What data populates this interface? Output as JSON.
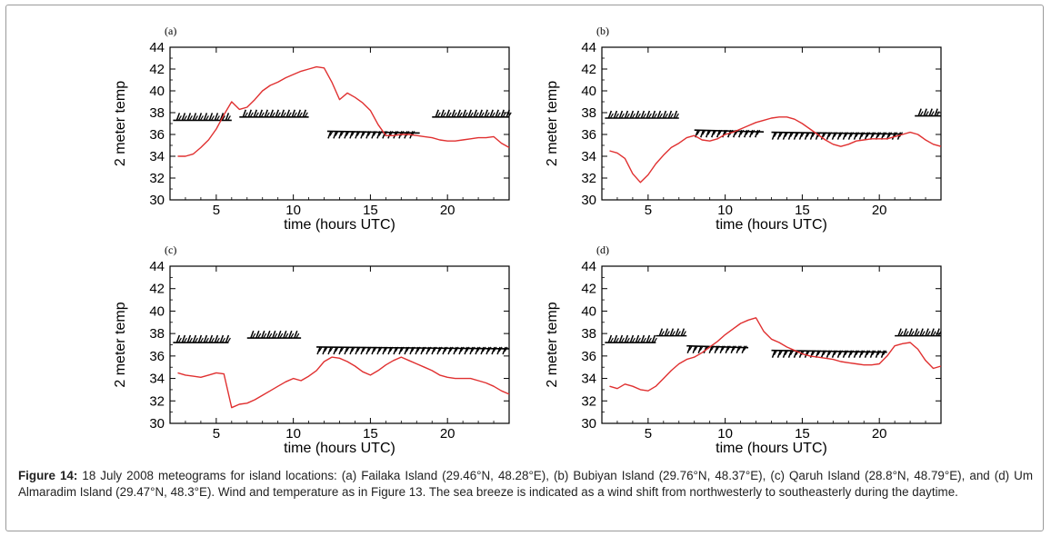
{
  "caption": {
    "label": "Figure 14:",
    "text": " 18 July 2008 meteograms for island locations: (a) Failaka Island (29.46°N, 48.28°E), (b) Bubiyan Island (29.76°N, 48.37°E), (c) Qaruh Island (28.8°N, 48.79°E), and (d) Um Almaradim Island (29.47°N, 48.3°E). Wind and temperature as in Figure 13. The sea breeze is indicated as a wind shift from northwesterly to southeasterly during the daytime."
  },
  "colors": {
    "temperature_line": "#e03030",
    "wind_barbs": "#000000",
    "axis": "#000000"
  },
  "chart_data": [
    {
      "type": "line",
      "panel_label": "(a)",
      "xlabel": "time (hours UTC)",
      "ylabel": "2 meter temp",
      "xlim": [
        2,
        24
      ],
      "ylim": [
        30,
        44
      ],
      "xticks": [
        5,
        10,
        15,
        20
      ],
      "yticks": [
        30,
        32,
        34,
        36,
        38,
        40,
        42,
        44
      ],
      "grid": false,
      "series": [
        {
          "values_x": [
            2.5,
            3,
            3.5,
            4,
            4.5,
            5,
            5.5,
            6,
            6.5,
            7,
            7.5,
            8,
            8.5,
            9,
            9.5,
            10,
            10.5,
            11,
            11.5,
            12,
            12.5,
            13,
            13.5,
            14,
            14.5,
            15,
            15.5,
            16,
            16.5,
            17,
            17.5,
            18,
            18.5,
            19,
            19.5,
            20,
            20.5,
            21,
            21.5,
            22,
            22.5,
            23,
            23.5,
            24
          ],
          "values_y": [
            34.0,
            34.0,
            34.2,
            34.8,
            35.5,
            36.5,
            37.8,
            39.0,
            38.3,
            38.5,
            39.2,
            40.0,
            40.5,
            40.8,
            41.2,
            41.5,
            41.8,
            42.0,
            42.2,
            42.1,
            40.8,
            39.2,
            39.8,
            39.4,
            38.9,
            38.2,
            36.9,
            35.9,
            35.9,
            36.0,
            36.0,
            35.9,
            35.8,
            35.7,
            35.5,
            35.4,
            35.4,
            35.5,
            35.6,
            35.7,
            35.7,
            35.8,
            35.2,
            34.8
          ]
        }
      ],
      "wind": [
        {
          "x_start": 2.2,
          "x_end": 6.0,
          "y": 37.3,
          "direction": "northwesterly"
        },
        {
          "x_start": 6.5,
          "x_end": 11.0,
          "y": 37.6,
          "direction": "northwesterly"
        },
        {
          "x_start": 12.2,
          "x_end": 18.2,
          "y": 36.3,
          "direction": "southeasterly"
        },
        {
          "x_start": 19.0,
          "x_end": 24.0,
          "y": 37.6,
          "direction": "northwesterly"
        }
      ]
    },
    {
      "type": "line",
      "panel_label": "(b)",
      "xlabel": "time (hours UTC)",
      "ylabel": "2 meter temp",
      "xlim": [
        2,
        24
      ],
      "ylim": [
        30,
        44
      ],
      "xticks": [
        5,
        10,
        15,
        20
      ],
      "yticks": [
        30,
        32,
        34,
        36,
        38,
        40,
        42,
        44
      ],
      "grid": false,
      "series": [
        {
          "values_x": [
            2.5,
            3,
            3.5,
            4,
            4.5,
            5,
            5.5,
            6,
            6.5,
            7,
            7.5,
            8,
            8.5,
            9,
            9.5,
            10,
            10.5,
            11,
            11.5,
            12,
            12.5,
            13,
            13.5,
            14,
            14.5,
            15,
            15.5,
            16,
            16.5,
            17,
            17.5,
            18,
            18.5,
            19,
            19.5,
            20,
            20.5,
            21,
            21.5,
            22,
            22.5,
            23,
            23.5,
            24
          ],
          "values_y": [
            34.5,
            34.3,
            33.8,
            32.4,
            31.6,
            32.3,
            33.3,
            34.1,
            34.8,
            35.2,
            35.7,
            35.9,
            35.5,
            35.4,
            35.6,
            36.0,
            36.2,
            36.5,
            36.8,
            37.1,
            37.3,
            37.5,
            37.6,
            37.6,
            37.4,
            37.0,
            36.5,
            36.0,
            35.5,
            35.1,
            34.9,
            35.1,
            35.4,
            35.5,
            35.6,
            35.6,
            35.6,
            35.8,
            36.0,
            36.2,
            36.0,
            35.5,
            35.1,
            34.9
          ]
        }
      ],
      "wind": [
        {
          "x_start": 2.2,
          "x_end": 7.0,
          "y": 37.5,
          "direction": "northwesterly"
        },
        {
          "x_start": 8.0,
          "x_end": 12.5,
          "y": 36.4,
          "direction": "southeasterly"
        },
        {
          "x_start": 13.0,
          "x_end": 21.5,
          "y": 36.2,
          "direction": "southeasterly"
        },
        {
          "x_start": 22.3,
          "x_end": 24.0,
          "y": 37.7,
          "direction": "northwesterly"
        }
      ]
    },
    {
      "type": "line",
      "panel_label": "(c)",
      "xlabel": "time (hours UTC)",
      "ylabel": "2 meter temp",
      "xlim": [
        2,
        24
      ],
      "ylim": [
        30,
        44
      ],
      "xticks": [
        5,
        10,
        15,
        20
      ],
      "yticks": [
        30,
        32,
        34,
        36,
        38,
        40,
        42,
        44
      ],
      "grid": false,
      "series": [
        {
          "values_x": [
            2.5,
            3,
            3.5,
            4,
            4.5,
            5,
            5.5,
            6,
            6.5,
            7,
            7.5,
            8,
            8.5,
            9,
            9.5,
            10,
            10.5,
            11,
            11.5,
            12,
            12.5,
            13,
            13.5,
            14,
            14.5,
            15,
            15.5,
            16,
            16.5,
            17,
            17.5,
            18,
            18.5,
            19,
            19.5,
            20,
            20.5,
            21,
            21.5,
            22,
            22.5,
            23,
            23.5,
            24
          ],
          "values_y": [
            34.5,
            34.3,
            34.2,
            34.1,
            34.3,
            34.5,
            34.4,
            31.4,
            31.7,
            31.8,
            32.1,
            32.5,
            32.9,
            33.3,
            33.7,
            34.0,
            33.8,
            34.2,
            34.7,
            35.5,
            35.9,
            35.8,
            35.5,
            35.1,
            34.6,
            34.3,
            34.7,
            35.2,
            35.6,
            35.9,
            35.6,
            35.3,
            35.0,
            34.7,
            34.3,
            34.1,
            34.0,
            34.0,
            34.0,
            33.8,
            33.6,
            33.3,
            32.9,
            32.6
          ]
        }
      ],
      "wind": [
        {
          "x_start": 2.2,
          "x_end": 5.8,
          "y": 37.2,
          "direction": "northwesterly"
        },
        {
          "x_start": 7.0,
          "x_end": 10.5,
          "y": 37.6,
          "direction": "northwesterly"
        },
        {
          "x_start": 11.5,
          "x_end": 24.0,
          "y": 36.8,
          "direction": "southeasterly"
        }
      ]
    },
    {
      "type": "line",
      "panel_label": "(d)",
      "xlabel": "time (hours UTC)",
      "ylabel": "2 meter temp",
      "xlim": [
        2,
        24
      ],
      "ylim": [
        30,
        44
      ],
      "xticks": [
        5,
        10,
        15,
        20
      ],
      "yticks": [
        30,
        32,
        34,
        36,
        38,
        40,
        42,
        44
      ],
      "grid": false,
      "series": [
        {
          "values_x": [
            2.5,
            3,
            3.5,
            4,
            4.5,
            5,
            5.5,
            6,
            6.5,
            7,
            7.5,
            8,
            8.5,
            9,
            9.5,
            10,
            10.5,
            11,
            11.5,
            12,
            12.5,
            13,
            13.5,
            14,
            14.5,
            15,
            15.5,
            16,
            16.5,
            17,
            17.5,
            18,
            18.5,
            19,
            19.5,
            20,
            20.5,
            21,
            21.5,
            22,
            22.5,
            23,
            23.5,
            24
          ],
          "values_y": [
            33.3,
            33.1,
            33.5,
            33.3,
            33.0,
            32.9,
            33.3,
            34.0,
            34.7,
            35.3,
            35.7,
            35.9,
            36.3,
            36.8,
            37.3,
            37.9,
            38.4,
            38.9,
            39.2,
            39.4,
            38.2,
            37.5,
            37.2,
            36.8,
            36.5,
            36.2,
            36.0,
            35.9,
            35.8,
            35.7,
            35.5,
            35.4,
            35.3,
            35.2,
            35.2,
            35.3,
            36.0,
            36.9,
            37.1,
            37.2,
            36.6,
            35.6,
            34.9,
            35.1
          ]
        }
      ],
      "wind": [
        {
          "x_start": 2.2,
          "x_end": 5.5,
          "y": 37.2,
          "direction": "northwesterly"
        },
        {
          "x_start": 5.5,
          "x_end": 7.5,
          "y": 37.8,
          "direction": "northwesterly"
        },
        {
          "x_start": 7.5,
          "x_end": 11.5,
          "y": 36.9,
          "direction": "southeasterly"
        },
        {
          "x_start": 13.0,
          "x_end": 20.5,
          "y": 36.5,
          "direction": "southeasterly"
        },
        {
          "x_start": 21.0,
          "x_end": 24.0,
          "y": 37.8,
          "direction": "northwesterly"
        }
      ]
    }
  ]
}
